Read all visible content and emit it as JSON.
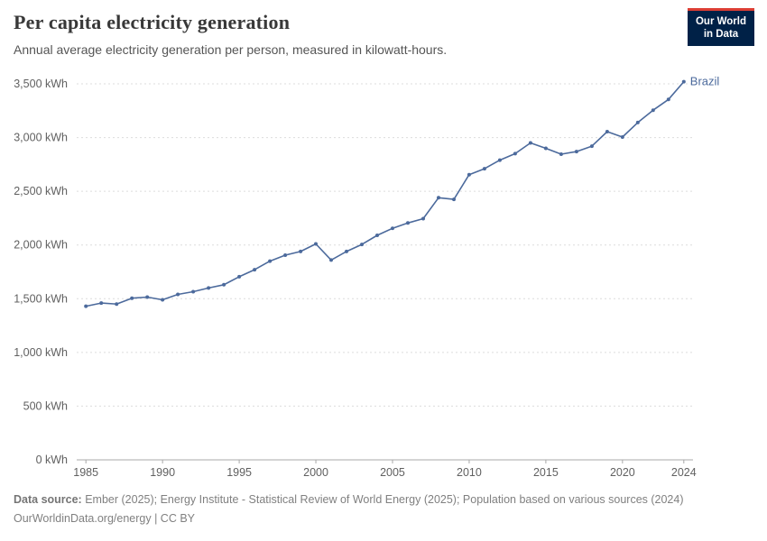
{
  "header": {
    "title": "Per capita electricity generation",
    "subtitle": "Annual average electricity generation per person, measured in kilowatt-hours."
  },
  "logo": {
    "line1": "Our World",
    "line2": "in Data",
    "background": "#002147",
    "accent": "#dc3d33"
  },
  "footer": {
    "source_label": "Data source:",
    "source_text": " Ember (2025); Energy Institute - Statistical Review of World Energy (2025); Population based on various sources (2024)",
    "license_text": "OurWorldinData.org/energy | CC BY"
  },
  "chart_data": {
    "type": "line",
    "title": "Per capita electricity generation",
    "subtitle": "Annual average electricity generation per person, measured in kilowatt-hours.",
    "unit": "kWh",
    "grid": "dashed-horizontal",
    "legend_position": "end-of-line-label",
    "xlim": [
      1984.4,
      2024.6
    ],
    "ylim": [
      0,
      3500
    ],
    "x_ticks": [
      1985,
      1990,
      1995,
      2000,
      2005,
      2010,
      2015,
      2020,
      2024
    ],
    "y_ticks": [
      0,
      500,
      1000,
      1500,
      2000,
      2500,
      3000,
      3500
    ],
    "series": [
      {
        "name": "Brazil",
        "color": "#4c6a9c",
        "years": [
          1985,
          1986,
          1987,
          1988,
          1989,
          1990,
          1991,
          1992,
          1993,
          1994,
          1995,
          1996,
          1997,
          1998,
          1999,
          2000,
          2001,
          2002,
          2003,
          2004,
          2005,
          2006,
          2007,
          2008,
          2009,
          2010,
          2011,
          2012,
          2013,
          2014,
          2015,
          2016,
          2017,
          2018,
          2019,
          2020,
          2021,
          2022,
          2023,
          2024
        ],
        "values": [
          1430,
          1460,
          1450,
          1505,
          1515,
          1490,
          1540,
          1565,
          1600,
          1630,
          1705,
          1770,
          1850,
          1905,
          1940,
          2010,
          1860,
          1940,
          2005,
          2090,
          2155,
          2205,
          2245,
          2440,
          2425,
          2655,
          2710,
          2790,
          2850,
          2950,
          2900,
          2845,
          2870,
          2920,
          3055,
          3005,
          3140,
          3255,
          3355,
          3520
        ]
      }
    ]
  }
}
